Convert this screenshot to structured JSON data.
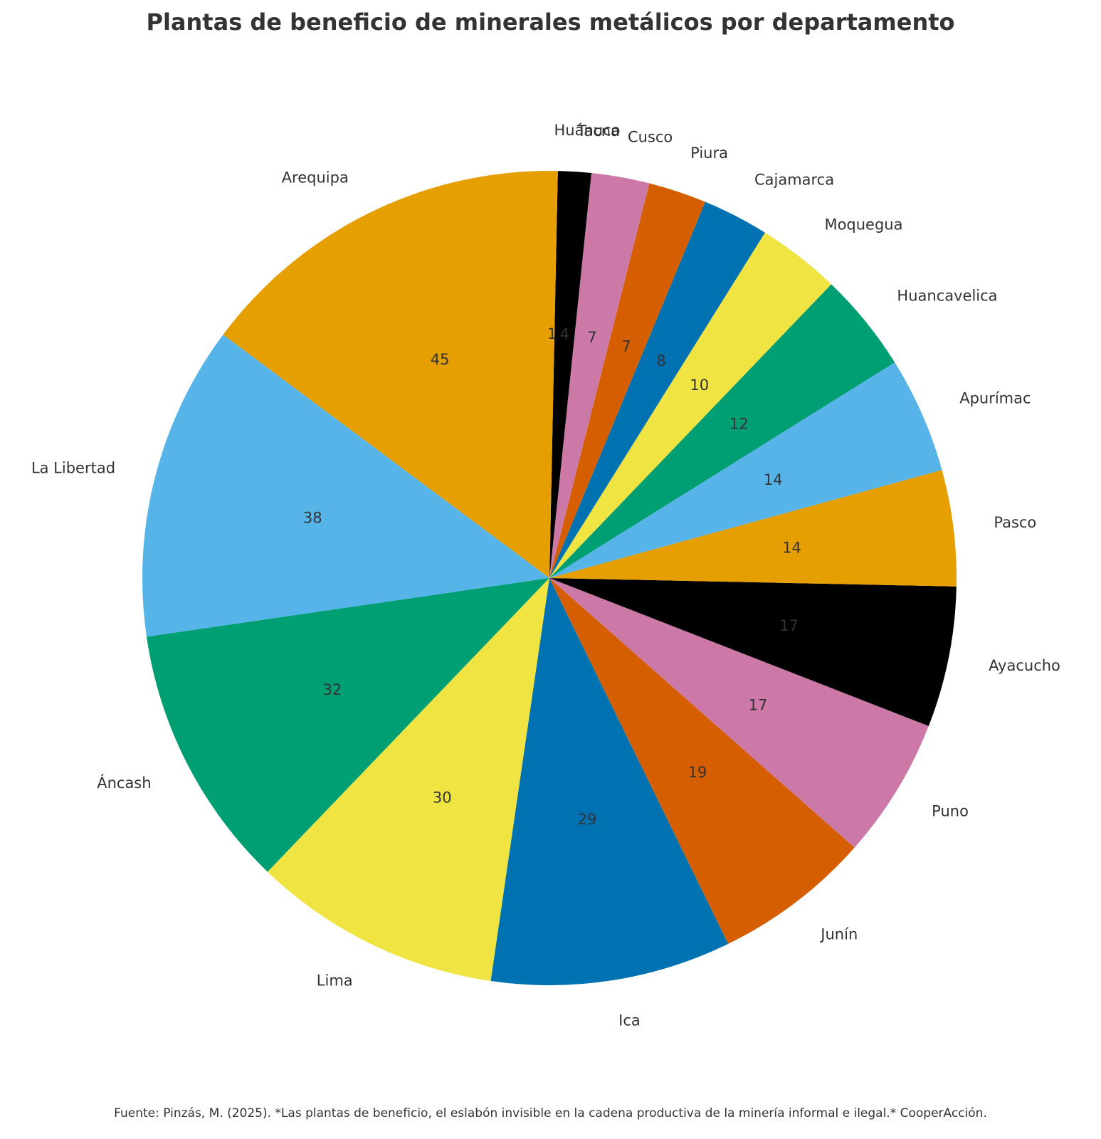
{
  "chart_data": {
    "type": "pie",
    "title": "Plantas de beneficio de minerales metálicos por departamento",
    "categories": [
      "Arequipa",
      "La Libertad",
      "Áncash",
      "Lima",
      "Ica",
      "Junín",
      "Puno",
      "Ayacucho",
      "Pasco",
      "Apurímac",
      "Huancavelica",
      "Moquegua",
      "Cajamarca",
      "Piura",
      "Cusco",
      "Tacna",
      "Huánuco"
    ],
    "values": [
      45,
      38,
      32,
      30,
      29,
      19,
      17,
      17,
      14,
      14,
      12,
      10,
      8,
      7,
      7,
      4,
      1
    ],
    "value_labels": [
      "45",
      "38",
      "32",
      "30",
      "29",
      "19",
      "17",
      "17",
      "14",
      "14",
      "12",
      "10",
      "8",
      "7",
      "7",
      "4",
      "1"
    ],
    "colors": [
      "#E69F00",
      "#56B4E9",
      "#009E73",
      "#F0E442",
      "#0072B2",
      "#D55E00",
      "#CC79A7",
      "#000000",
      "#E69F00",
      "#56B4E9",
      "#009E73",
      "#F0E442",
      "#0072B2",
      "#D55E00",
      "#CC79A7",
      "#000000",
      "#E69F00"
    ],
    "start_angle_deg": 90,
    "direction": "counterclockwise",
    "legend": "none"
  },
  "footer": {
    "source": "Fuente: Pinzás, M. (2025). *Las plantas de beneficio, el eslabón invisible en la cadena productiva de la minería informal e ilegal.* CooperAcción."
  }
}
